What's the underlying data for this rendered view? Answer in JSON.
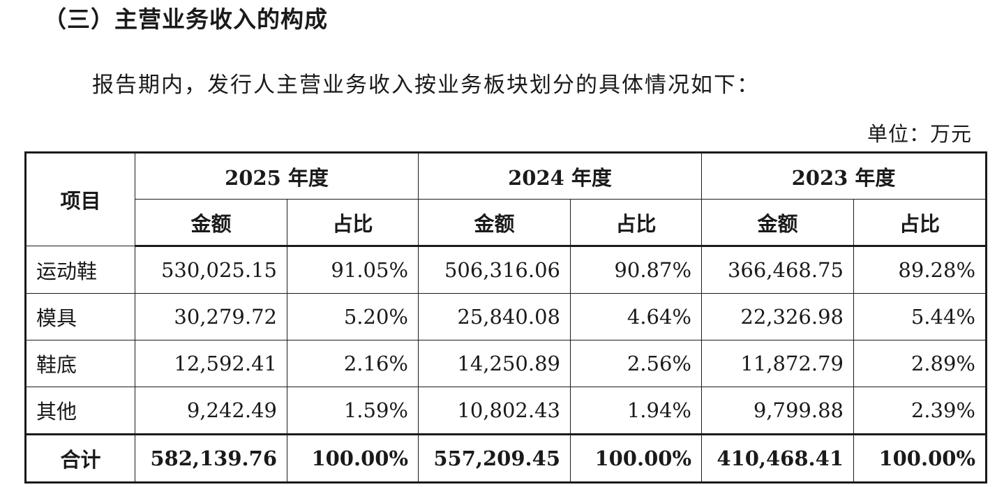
{
  "section_heading": "（三）主营业务收入的构成",
  "intro_text": "报告期内，发行人主营业务收入按业务板块划分的具体情况如下：",
  "unit_label": "单位：万元",
  "table": {
    "item_header": "项目",
    "amount_header": "金额",
    "share_header": "占比",
    "years": [
      "2025 年度",
      "2024 年度",
      "2023 年度"
    ],
    "rows": [
      {
        "name": "运动鞋",
        "cells": [
          "530,025.15",
          "91.05%",
          "506,316.06",
          "90.87%",
          "366,468.75",
          "89.28%"
        ]
      },
      {
        "name": "模具",
        "cells": [
          "30,279.72",
          "5.20%",
          "25,840.08",
          "4.64%",
          "22,326.98",
          "5.44%"
        ]
      },
      {
        "name": "鞋底",
        "cells": [
          "12,592.41",
          "2.16%",
          "14,250.89",
          "2.56%",
          "11,872.79",
          "2.89%"
        ]
      },
      {
        "name": "其他",
        "cells": [
          "9,242.49",
          "1.59%",
          "10,802.43",
          "1.94%",
          "9,799.88",
          "2.39%"
        ]
      }
    ],
    "total": {
      "name": "合计",
      "cells": [
        "582,139.76",
        "100.00%",
        "557,209.45",
        "100.00%",
        "410,468.41",
        "100.00%"
      ]
    }
  }
}
